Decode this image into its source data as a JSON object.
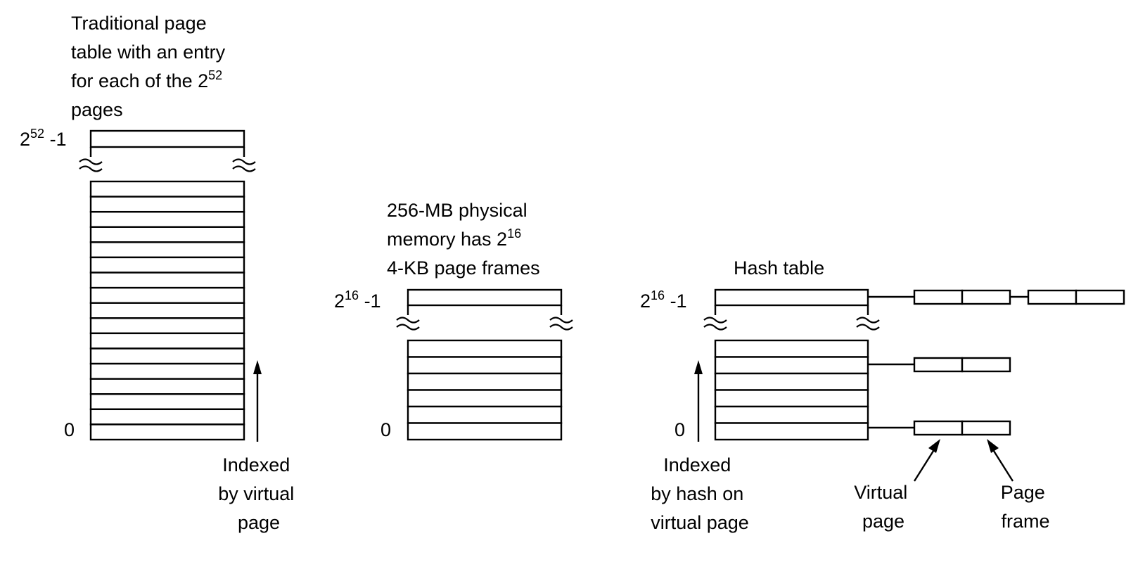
{
  "traditional_table": {
    "caption": [
      "Traditional page",
      "table with an entry",
      "for each of the 2",
      "pages"
    ],
    "caption_sup": "52",
    "top_base": "2",
    "top_sup": "52",
    "top_suffix": " -1",
    "bottom_label": "0",
    "arrow_label": [
      "Indexed",
      "by virtual",
      "page"
    ]
  },
  "physical_memory": {
    "caption": [
      "256-MB physical",
      "memory has 2",
      "4-KB page frames"
    ],
    "caption_sup": "16",
    "top_base": "2",
    "top_sup": "16",
    "top_suffix": " -1",
    "bottom_label": "0"
  },
  "hash_table": {
    "title": "Hash table",
    "top_base": "2",
    "top_sup": "16",
    "top_suffix": " -1",
    "bottom_label": "0",
    "arrow_label": [
      "Indexed",
      "by hash on",
      "virtual page"
    ],
    "entry_labels": {
      "virtual_page": [
        "Virtual",
        "page"
      ],
      "page_frame": [
        "Page",
        "frame"
      ]
    }
  }
}
